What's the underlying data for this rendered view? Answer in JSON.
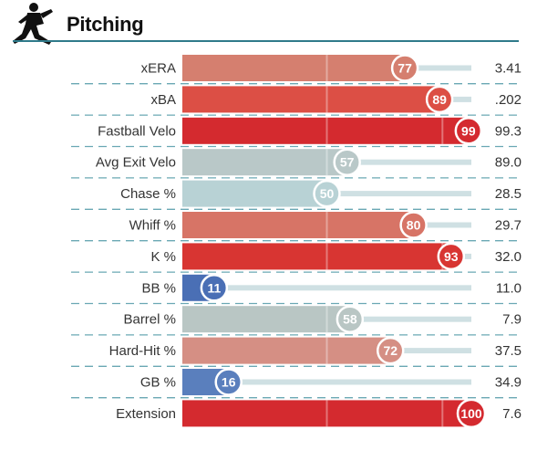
{
  "header": {
    "title": "Pitching",
    "icon": "pitcher-silhouette-icon"
  },
  "colors": {
    "rule": "#2f7a8a",
    "track": "#cfe0e3",
    "dash": "#6aa8b4"
  },
  "chart_data": {
    "type": "bar",
    "orientation": "horizontal",
    "xlim": [
      0,
      100
    ],
    "rows": [
      {
        "label": "xERA",
        "percentile": 77,
        "value": "3.41",
        "color": "#d57f6f"
      },
      {
        "label": "xBA",
        "percentile": 89,
        "value": ".202",
        "color": "#dc4f45"
      },
      {
        "label": "Fastball Velo",
        "percentile": 99,
        "value": "99.3",
        "color": "#d42a2f"
      },
      {
        "label": "Avg Exit Velo",
        "percentile": 57,
        "value": "89.0",
        "color": "#b9c8c8"
      },
      {
        "label": "Chase %",
        "percentile": 50,
        "value": "28.5",
        "color": "#b8d2d5"
      },
      {
        "label": "Whiff %",
        "percentile": 80,
        "value": "29.7",
        "color": "#d77466"
      },
      {
        "label": "K %",
        "percentile": 93,
        "value": "32.0",
        "color": "#d83532"
      },
      {
        "label": "BB %",
        "percentile": 11,
        "value": "11.0",
        "color": "#4a6fb5"
      },
      {
        "label": "Barrel %",
        "percentile": 58,
        "value": "7.9",
        "color": "#b9c6c4"
      },
      {
        "label": "Hard-Hit %",
        "percentile": 72,
        "value": "37.5",
        "color": "#d58f84"
      },
      {
        "label": "GB %",
        "percentile": 16,
        "value": "34.9",
        "color": "#5a7fbd"
      },
      {
        "label": "Extension",
        "percentile": 100,
        "value": "7.6",
        "color": "#d42a2f"
      }
    ]
  }
}
